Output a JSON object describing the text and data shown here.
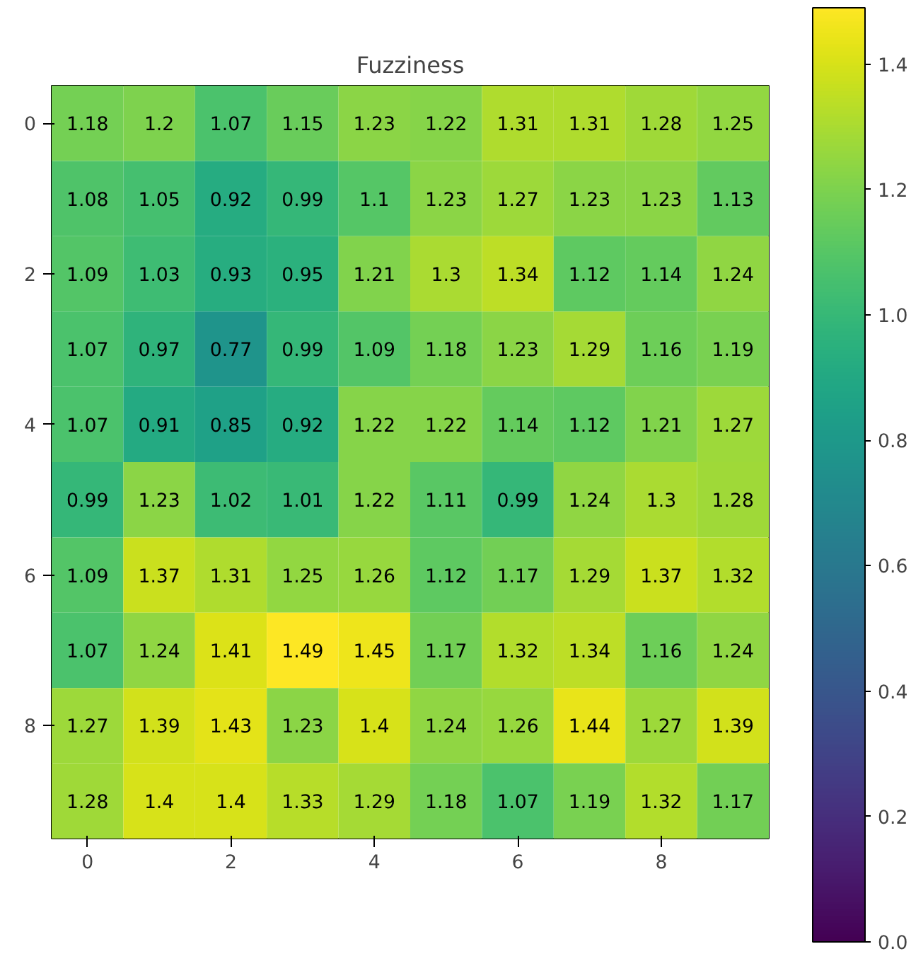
{
  "chart_data": {
    "type": "heatmap",
    "title": "Fuzziness",
    "categories": [
      "0",
      null,
      "2",
      null,
      "4",
      null,
      "6",
      null,
      "8",
      null
    ],
    "y_categories": [
      "0",
      null,
      "2",
      null,
      "4",
      null,
      "6",
      null,
      "8",
      null
    ],
    "cells": [
      [
        1.18,
        1.2,
        1.07,
        1.15,
        1.23,
        1.22,
        1.31,
        1.31,
        1.28,
        1.25
      ],
      [
        1.08,
        1.05,
        0.92,
        0.99,
        1.1,
        1.23,
        1.27,
        1.23,
        1.23,
        1.13
      ],
      [
        1.09,
        1.03,
        0.93,
        0.95,
        1.21,
        1.3,
        1.34,
        1.12,
        1.14,
        1.24
      ],
      [
        1.07,
        0.97,
        0.77,
        0.99,
        1.09,
        1.18,
        1.23,
        1.29,
        1.16,
        1.19
      ],
      [
        1.07,
        0.91,
        0.85,
        0.92,
        1.22,
        1.22,
        1.14,
        1.12,
        1.21,
        1.27
      ],
      [
        0.99,
        1.23,
        1.02,
        1.01,
        1.22,
        1.11,
        0.99,
        1.24,
        1.3,
        1.28
      ],
      [
        1.09,
        1.37,
        1.31,
        1.25,
        1.26,
        1.12,
        1.17,
        1.29,
        1.37,
        1.32
      ],
      [
        1.07,
        1.24,
        1.41,
        1.49,
        1.45,
        1.17,
        1.32,
        1.34,
        1.16,
        1.24
      ],
      [
        1.27,
        1.39,
        1.43,
        1.23,
        1.4,
        1.24,
        1.26,
        1.44,
        1.27,
        1.39
      ],
      [
        1.28,
        1.4,
        1.4,
        1.33,
        1.29,
        1.18,
        1.07,
        1.19,
        1.32,
        1.17
      ]
    ],
    "data_labels": true,
    "clim": [
      0,
      1.49
    ],
    "cticks": [
      {
        "value": 0,
        "label": "0.0"
      },
      {
        "value": 0.2,
        "label": "0.2"
      },
      {
        "value": 0.4,
        "label": "0.4"
      },
      {
        "value": 0.6,
        "label": "0.6"
      },
      {
        "value": 0.8,
        "label": "0.8"
      },
      {
        "value": 1,
        "label": "1.0"
      },
      {
        "value": 1.2,
        "label": "1.2"
      },
      {
        "value": 1.4,
        "label": "1.4"
      }
    ]
  }
}
